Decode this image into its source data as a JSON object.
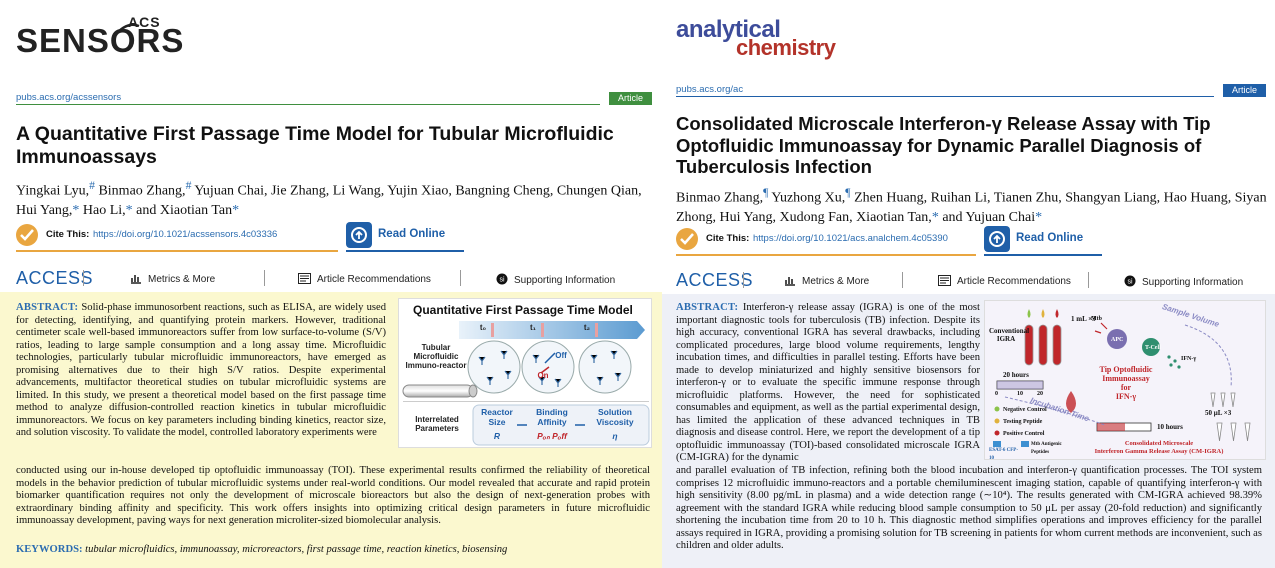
{
  "left": {
    "journal_logo": "ACS SENSORS",
    "journal_logo_prefix": "ACS",
    "journal_logo_word": "SENSORS",
    "url": "pubs.acs.org/acssensors",
    "article_type": "Article",
    "title": "A Quantitative First Passage Time Model for Tubular Microfluidic Immunoassays",
    "authors": [
      {
        "name": "Yingkai Lyu,",
        "mark": "#"
      },
      {
        "name": " Binmao Zhang,",
        "mark": "#"
      },
      {
        "name": " Yujuan Chai, Jie Zhang, Li Wang, Yujin Xiao, Bangning Cheng, Chungen Qian, Hui Yang,",
        "mark": "*"
      },
      {
        "name": " Hao Li,",
        "mark": "*"
      },
      {
        "name": " and Xiaotian Tan",
        "mark": "*"
      }
    ],
    "cite_label": "Cite This:",
    "cite_doi": "https://doi.org/10.1021/acssensors.4c03336",
    "read_online": "Read Online",
    "access": "ACCESS",
    "metrics": "Metrics & More",
    "recommendations": "Article Recommendations",
    "supporting": "Supporting Information",
    "abstract_label": "ABSTRACT:",
    "abstract_top": "Solid-phase immunosorbent reactions, such as ELISA, are widely used for detecting, identifying, and quantifying protein markers. However, traditional centimeter scale well-based immunoreactors suffer from low surface-to-volume (S/V) ratios, leading to large sample consumption and a long assay time. Microfluidic technologies, particularly tubular microfluidic immunoreactors, have emerged as promising alternatives due to their high S/V ratios. Despite experimental advancements, multifactor theoretical studies on tubular microfluidic systems are limited. In this study, we present a theoretical model based on the first passage time method to analyze diffusion-controlled reaction kinetics in tubular microfluidic immunoreactors. We focus on key parameters including binding kinetics, reactor size, and solution viscosity. To validate the model, controlled laboratory experiments were",
    "abstract_bottom": "conducted using our in-house developed tip optofluidic immunoassay (TOI). These experimental results confirmed the reliability of theoretical models in the behavior prediction of tubular microfluidic systems under real-world conditions. Our model revealed that accurate and rapid protein biomarker quantification requires not only the development of microscale bioreactors but also the design of next-generation probes with extraordinary binding affinity and specificity. This work offers insights into optimizing critical design parameters in future microfluidic immunoassay development, paving ways for next generation microliter-sized biomolecular analysis.",
    "keywords_label": "KEYWORDS:",
    "keywords": "tubular microfluidics, immunoassay, microreactors, first passage time, reaction kinetics, biosensing",
    "toc": {
      "title": "Quantitative First Passage Time Model",
      "t0": "t₀",
      "t1": "t₁",
      "t2": "t₂",
      "reactor_label": "Tubular Microfluidic Immuno-reactor",
      "off": "Off",
      "on": "On",
      "params_label": "Interrelated Parameters",
      "p1_name": "Reactor Size",
      "p1_sym": "R",
      "p2_name": "Binding Affinity",
      "p2_sym": "Pₒₙ Pₒff",
      "p3_name": "Solution Viscosity",
      "p3_sym": "η"
    }
  },
  "right": {
    "journal_logo_1": "analytical",
    "journal_logo_2": "chemistry",
    "url": "pubs.acs.org/ac",
    "article_type": "Article",
    "title": "Consolidated Microscale Interferon-γ Release Assay with Tip Optofluidic Immunoassay for Dynamic Parallel Diagnosis of Tuberculosis Infection",
    "authors": [
      {
        "name": "Binmao Zhang,",
        "mark": "¶"
      },
      {
        "name": " Yuzhong Xu,",
        "mark": "¶"
      },
      {
        "name": " Zhen Huang, Ruihan Li, Tianen Zhu, Shangyan Liang, Hao Huang, Siyan Zhong, Hui Yang, Xudong Fan, Xiaotian Tan,",
        "mark": "*"
      },
      {
        "name": " and Yujuan Chai",
        "mark": "*"
      }
    ],
    "cite_label": "Cite This:",
    "cite_doi": "https://doi.org/10.1021/acs.analchem.4c05390",
    "read_online": "Read Online",
    "access": "ACCESS",
    "metrics": "Metrics & More",
    "recommendations": "Article Recommendations",
    "supporting": "Supporting Information",
    "abstract_label": "ABSTRACT:",
    "abstract_top": "Interferon-γ release assay (IGRA) is one of the most important diagnostic tools for tuberculosis (TB) infection. Despite its high accuracy, conventional IGRA has several drawbacks, including complicated procedures, large blood volume requirements, lengthy incubation times, and difficulties in parallel testing. Efforts have been made to develop miniaturized and highly sensitive biosensors for interferon-γ or to evaluate the specific immune response through microfluidic platforms. However, the need for sophisticated consumables and equipment, as well as the partial experimental design, has limited the application of these advanced techniques in TB diagnosis and disease control. Here, we report the development of a tip optofluidic immunoassay (TOI)-based consolidated microscale IGRA (CM-IGRA) for the dynamic",
    "abstract_bottom": "and parallel evaluation of TB infection, refining both the blood incubation and interferon-γ quantification processes. The TOI system comprises 12 microfluidic immuno-reactors and a portable chemiluminescent imaging station, capable of quantifying interferon-γ with high sensitivity (8.00 pg/mL in plasma) and a wide detection range (∼10⁴). The results generated with CM-IGRA achieved 98.39% agreement with the standard IGRA while reducing blood sample consumption to 50 μL per assay (20-fold reduction) and significantly shortening the incubation time from 20 to 10 h. This diagnostic method simplifies operations and improves efficiency for the parallel assays required in IGRA, providing a promising solution for TB screening in patients for whom current methods are inconvenient, such as children and older adults.",
    "toc": {
      "sample_volume": "Sample Volume",
      "one_ml": "1 mL ×3",
      "conventional": "Conventional IGRA",
      "apc": "APC",
      "mtb": "Mtb",
      "tcell": "T-Cell",
      "ifn": "IFN-γ",
      "twenty_hours": "20 hours",
      "axis_0": "0",
      "axis_10": "10",
      "axis_20": "20",
      "center_1": "Tip Optofluidic",
      "center_2": "Immunoassay",
      "center_3": "for",
      "center_4": "IFN-γ",
      "fifty_ul": "50 μL ×3",
      "incubation": "Incubation Time",
      "neg": "Negative Control",
      "test": "Testing Peptide",
      "pos": "Positive Control",
      "esat": "ESAT-6 CFP-10",
      "mtb_pep": "Mtb Antigenic Peptides",
      "ten_hours": "10 hours",
      "consolidated_1": "Consolidated Microscale",
      "consolidated_2": "Interferon Gamma Release Assay (CM-IGRA)"
    }
  },
  "colors": {
    "acs_sensors_green": "#3f8f3f",
    "analchem_blue": "#1f5fa8",
    "link_blue": "#2b6cb0",
    "cite_orange": "#e9a640",
    "abstract_bg_left": "#fbf8cf",
    "abstract_bg_right": "#eef0f7"
  }
}
